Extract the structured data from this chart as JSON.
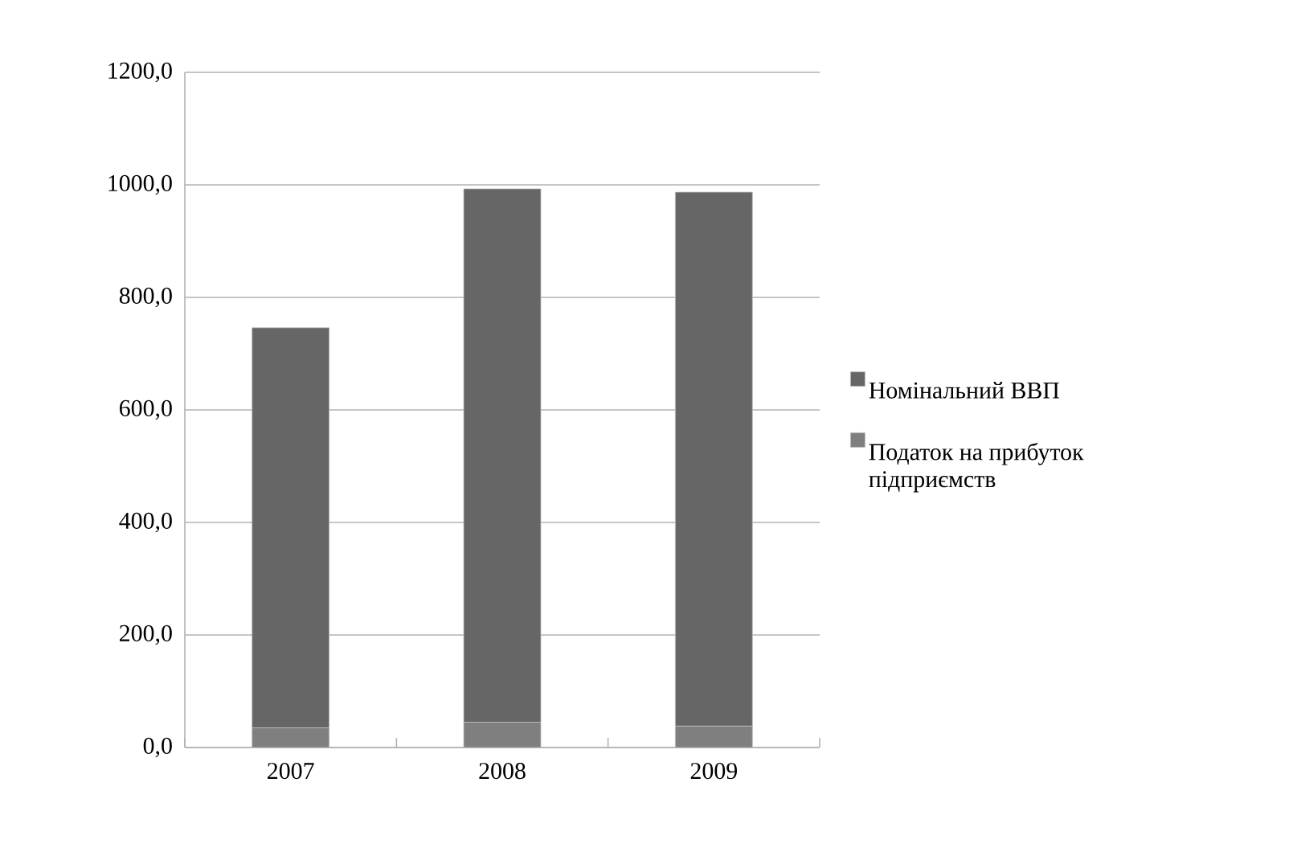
{
  "chart_data": {
    "type": "bar",
    "stacked": true,
    "categories": [
      "2007",
      "2008",
      "2009"
    ],
    "series": [
      {
        "name": "Податок на прибуток підприємств",
        "color": "#7f7f7f",
        "values": [
          35,
          45,
          38
        ]
      },
      {
        "name": "Номінальний ВВП",
        "color": "#666666",
        "values": [
          711,
          948,
          949
        ]
      }
    ],
    "ylim": [
      0,
      1200
    ],
    "yticks": [
      {
        "value": 0,
        "label": "0,0"
      },
      {
        "value": 200,
        "label": "200,0"
      },
      {
        "value": 400,
        "label": "400,0"
      },
      {
        "value": 600,
        "label": "600,0"
      },
      {
        "value": 800,
        "label": "800,0"
      },
      {
        "value": 1000,
        "label": "1000,0"
      },
      {
        "value": 1200,
        "label": "1200,0"
      }
    ],
    "grid": "y",
    "legend": "right"
  }
}
